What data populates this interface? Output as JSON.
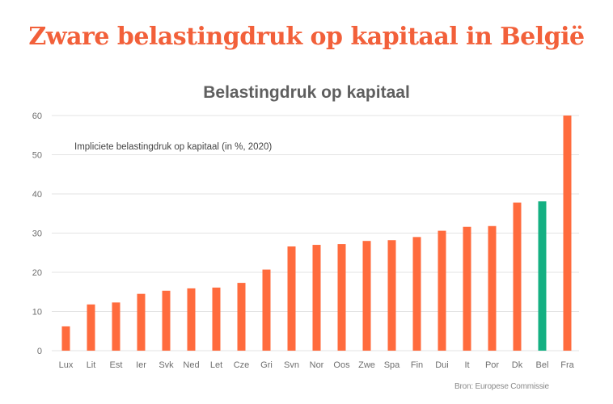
{
  "headline": "Zware belastingdruk op kapitaal in België",
  "source": "Bron: Europese Commissie",
  "colors": {
    "default_bar": "#ff6b3d",
    "highlight_bar": "#14b082",
    "headline": "#f2603a"
  },
  "chart_data": {
    "type": "bar",
    "title": "Belastingdruk op kapitaal",
    "subtitle": "Impliciete belastingdruk op kapitaal (in %, 2020)",
    "xlabel": "",
    "ylabel": "",
    "ylim": [
      0,
      60
    ],
    "yticks": [
      0,
      10,
      20,
      30,
      40,
      50,
      60
    ],
    "grid": true,
    "categories": [
      "Lux",
      "Lit",
      "Est",
      "Ier",
      "Svk",
      "Ned",
      "Let",
      "Cze",
      "Gri",
      "Svn",
      "Nor",
      "Oos",
      "Zwe",
      "Spa",
      "Fin",
      "Dui",
      "It",
      "Por",
      "Dk",
      "Bel",
      "Fra"
    ],
    "values": [
      6.2,
      11.8,
      12.3,
      14.5,
      15.3,
      15.9,
      16.1,
      17.3,
      20.7,
      26.6,
      27.0,
      27.2,
      28.0,
      28.2,
      29.0,
      30.6,
      31.6,
      31.8,
      37.8,
      38.1,
      60.0
    ],
    "highlight": "Bel"
  }
}
